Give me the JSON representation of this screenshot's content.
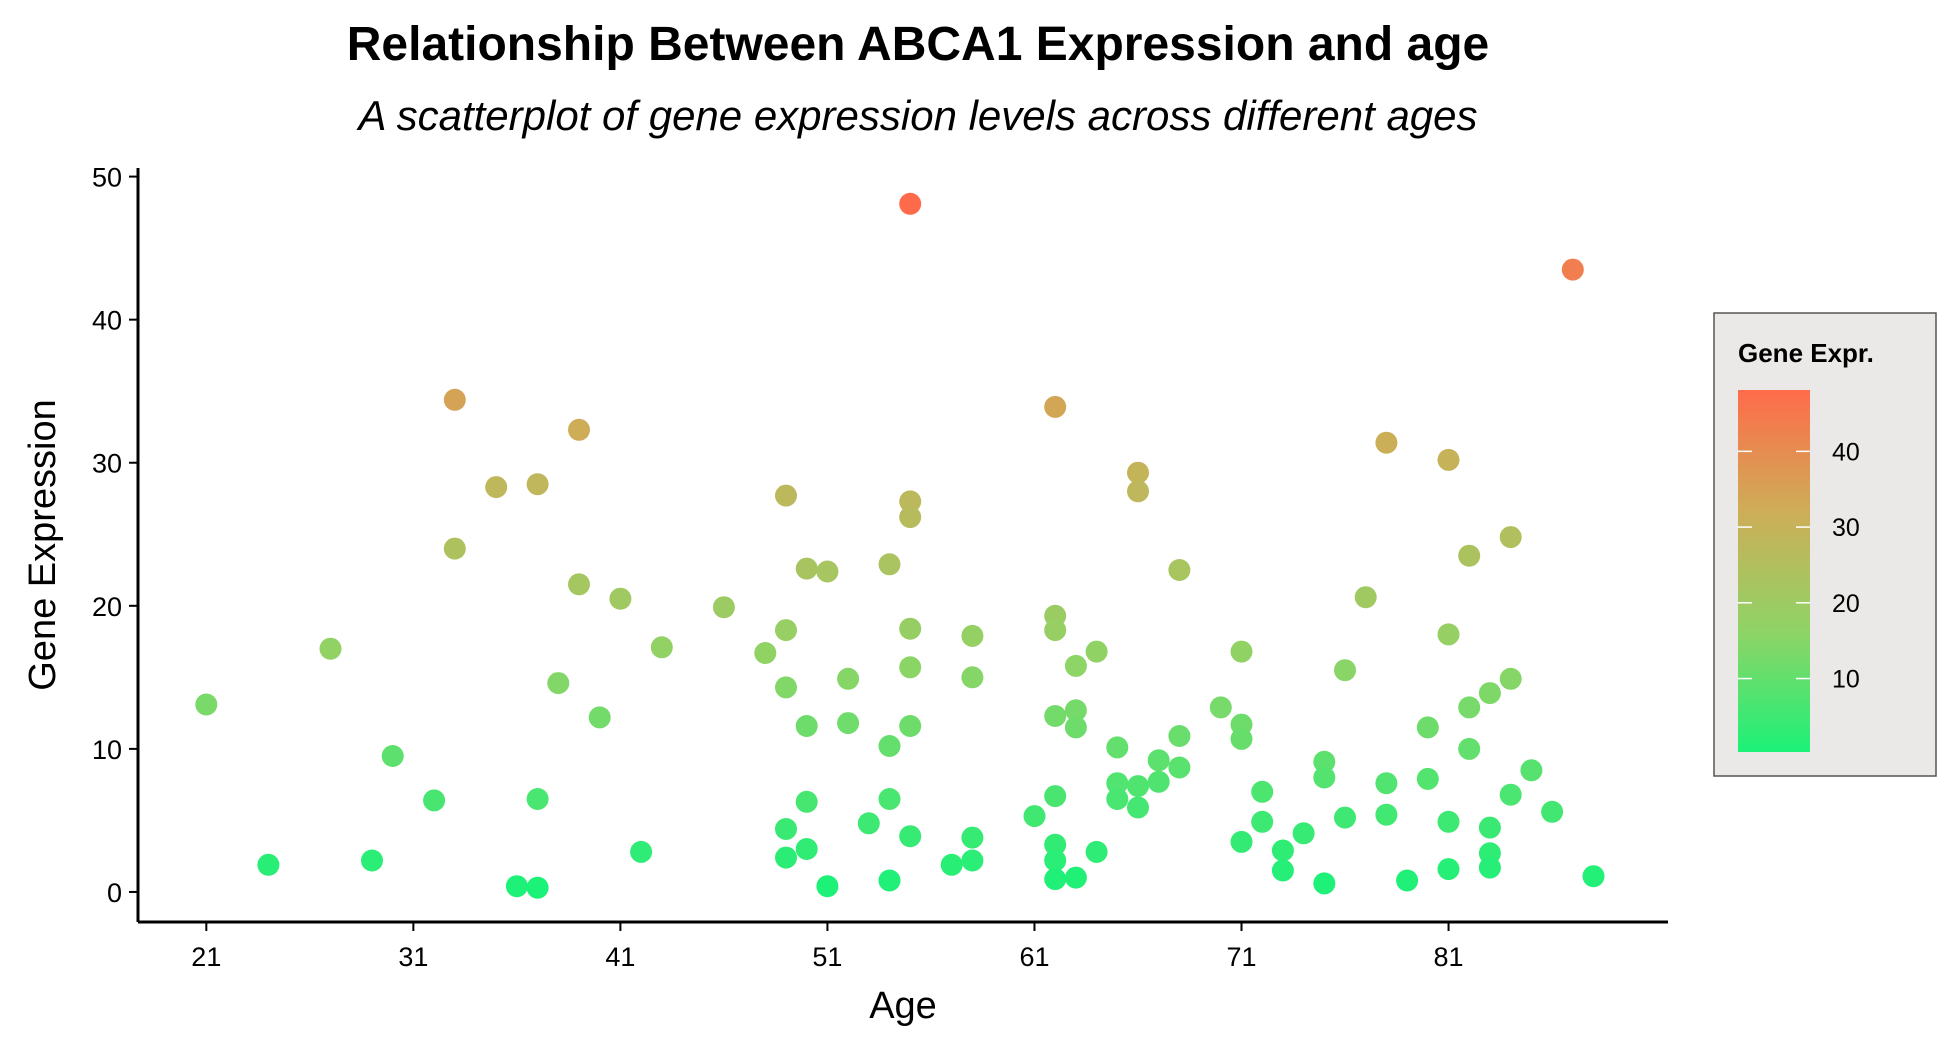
{
  "chart_data": {
    "type": "scatter",
    "title": "Relationship Between ABCA1 Expression and age",
    "subtitle": "A scatterplot of gene expression levels across different ages",
    "xlabel": "Age",
    "ylabel": "Gene Expression",
    "xlim": [
      17.7,
      91.6
    ],
    "ylim": [
      -2.1,
      50.6
    ],
    "xticks": [
      21,
      31,
      41,
      51,
      61,
      71,
      81
    ],
    "yticks": [
      0,
      10,
      20,
      30,
      40,
      50
    ],
    "grid": false,
    "legend": {
      "title": "Gene Expr.",
      "position": "right",
      "ticks": [
        10,
        20,
        30,
        40
      ],
      "range": [
        0.3,
        48.1
      ],
      "low_color": "#1CF178",
      "high_color": "#FF6B4A"
    },
    "points": [
      {
        "x": 21,
        "y": 13.1
      },
      {
        "x": 24,
        "y": 1.9
      },
      {
        "x": 27,
        "y": 17.0
      },
      {
        "x": 29,
        "y": 2.2
      },
      {
        "x": 30,
        "y": 9.5
      },
      {
        "x": 32,
        "y": 6.4
      },
      {
        "x": 33,
        "y": 34.4
      },
      {
        "x": 33,
        "y": 24.0
      },
      {
        "x": 35,
        "y": 28.3
      },
      {
        "x": 36,
        "y": 0.4
      },
      {
        "x": 37,
        "y": 28.5
      },
      {
        "x": 37,
        "y": 6.5
      },
      {
        "x": 37,
        "y": 0.3
      },
      {
        "x": 38,
        "y": 14.6
      },
      {
        "x": 39,
        "y": 32.3
      },
      {
        "x": 39,
        "y": 21.5
      },
      {
        "x": 40,
        "y": 12.2
      },
      {
        "x": 41,
        "y": 20.5
      },
      {
        "x": 42,
        "y": 2.8
      },
      {
        "x": 43,
        "y": 17.1
      },
      {
        "x": 46,
        "y": 19.9
      },
      {
        "x": 48,
        "y": 16.7
      },
      {
        "x": 49,
        "y": 27.7
      },
      {
        "x": 49,
        "y": 18.3
      },
      {
        "x": 49,
        "y": 14.3
      },
      {
        "x": 49,
        "y": 4.4
      },
      {
        "x": 49,
        "y": 2.4
      },
      {
        "x": 50,
        "y": 22.6
      },
      {
        "x": 50,
        "y": 11.6
      },
      {
        "x": 50,
        "y": 6.3
      },
      {
        "x": 50,
        "y": 3.0
      },
      {
        "x": 51,
        "y": 22.4
      },
      {
        "x": 51,
        "y": 0.4
      },
      {
        "x": 52,
        "y": 14.9
      },
      {
        "x": 52,
        "y": 11.8
      },
      {
        "x": 53,
        "y": 4.8
      },
      {
        "x": 54,
        "y": 22.9
      },
      {
        "x": 54,
        "y": 10.2
      },
      {
        "x": 54,
        "y": 6.5
      },
      {
        "x": 54,
        "y": 0.8
      },
      {
        "x": 55,
        "y": 48.1
      },
      {
        "x": 55,
        "y": 27.3
      },
      {
        "x": 55,
        "y": 26.2
      },
      {
        "x": 55,
        "y": 18.4
      },
      {
        "x": 55,
        "y": 15.7
      },
      {
        "x": 55,
        "y": 11.6
      },
      {
        "x": 55,
        "y": 3.9
      },
      {
        "x": 57,
        "y": 1.9
      },
      {
        "x": 58,
        "y": 17.9
      },
      {
        "x": 58,
        "y": 15.0
      },
      {
        "x": 58,
        "y": 3.8
      },
      {
        "x": 58,
        "y": 2.2
      },
      {
        "x": 61,
        "y": 5.3
      },
      {
        "x": 62,
        "y": 33.9
      },
      {
        "x": 62,
        "y": 19.3
      },
      {
        "x": 62,
        "y": 18.3
      },
      {
        "x": 62,
        "y": 12.3
      },
      {
        "x": 62,
        "y": 6.7
      },
      {
        "x": 62,
        "y": 3.3
      },
      {
        "x": 62,
        "y": 2.2
      },
      {
        "x": 62,
        "y": 0.9
      },
      {
        "x": 63,
        "y": 15.8
      },
      {
        "x": 63,
        "y": 12.7
      },
      {
        "x": 63,
        "y": 11.5
      },
      {
        "x": 63,
        "y": 1.0
      },
      {
        "x": 64,
        "y": 16.8
      },
      {
        "x": 64,
        "y": 2.8
      },
      {
        "x": 65,
        "y": 10.1
      },
      {
        "x": 65,
        "y": 7.6
      },
      {
        "x": 65,
        "y": 6.5
      },
      {
        "x": 66,
        "y": 29.3
      },
      {
        "x": 66,
        "y": 28.0
      },
      {
        "x": 66,
        "y": 7.4
      },
      {
        "x": 66,
        "y": 5.9
      },
      {
        "x": 67,
        "y": 9.2
      },
      {
        "x": 67,
        "y": 7.7
      },
      {
        "x": 68,
        "y": 22.5
      },
      {
        "x": 68,
        "y": 10.9
      },
      {
        "x": 68,
        "y": 8.7
      },
      {
        "x": 70,
        "y": 12.9
      },
      {
        "x": 71,
        "y": 16.8
      },
      {
        "x": 71,
        "y": 11.7
      },
      {
        "x": 71,
        "y": 10.7
      },
      {
        "x": 71,
        "y": 3.5
      },
      {
        "x": 72,
        "y": 7.0
      },
      {
        "x": 72,
        "y": 4.9
      },
      {
        "x": 73,
        "y": 2.9
      },
      {
        "x": 73,
        "y": 1.5
      },
      {
        "x": 74,
        "y": 4.1
      },
      {
        "x": 75,
        "y": 9.1
      },
      {
        "x": 75,
        "y": 8.0
      },
      {
        "x": 75,
        "y": 0.6
      },
      {
        "x": 76,
        "y": 15.5
      },
      {
        "x": 76,
        "y": 5.2
      },
      {
        "x": 77,
        "y": 20.6
      },
      {
        "x": 78,
        "y": 31.4
      },
      {
        "x": 78,
        "y": 7.6
      },
      {
        "x": 78,
        "y": 5.4
      },
      {
        "x": 79,
        "y": 0.8
      },
      {
        "x": 80,
        "y": 11.5
      },
      {
        "x": 80,
        "y": 7.9
      },
      {
        "x": 81,
        "y": 30.2
      },
      {
        "x": 81,
        "y": 18.0
      },
      {
        "x": 81,
        "y": 4.9
      },
      {
        "x": 81,
        "y": 1.6
      },
      {
        "x": 82,
        "y": 23.5
      },
      {
        "x": 82,
        "y": 12.9
      },
      {
        "x": 82,
        "y": 10.0
      },
      {
        "x": 83,
        "y": 13.9
      },
      {
        "x": 83,
        "y": 4.5
      },
      {
        "x": 83,
        "y": 2.7
      },
      {
        "x": 83,
        "y": 1.7
      },
      {
        "x": 84,
        "y": 24.8
      },
      {
        "x": 84,
        "y": 14.9
      },
      {
        "x": 84,
        "y": 6.8
      },
      {
        "x": 85,
        "y": 8.5
      },
      {
        "x": 86,
        "y": 5.6
      },
      {
        "x": 87,
        "y": 43.5
      },
      {
        "x": 88,
        "y": 1.1
      }
    ]
  }
}
